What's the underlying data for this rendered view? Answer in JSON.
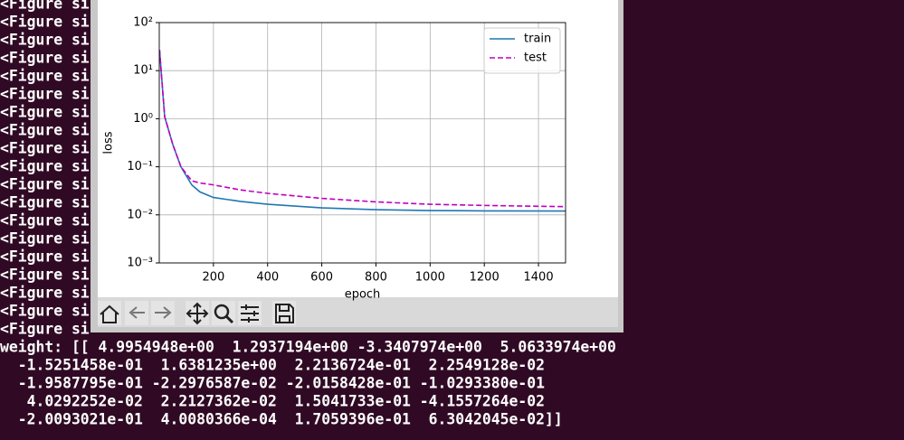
{
  "terminal": {
    "figure_lines": [
      "<Figure si",
      "<Figure si",
      "<Figure si",
      "<Figure si",
      "<Figure si",
      "<Figure si",
      "<Figure si",
      "<Figure si",
      "<Figure si",
      "<Figure si",
      "<Figure si",
      "<Figure si",
      "<Figure si",
      "<Figure si",
      "<Figure si",
      "<Figure si",
      "<Figure si",
      "<Figure si",
      "<Figure si"
    ],
    "weight_lines": [
      "weight: [[ 4.9954948e+00  1.2937194e+00 -3.3407974e+00  5.0633974e+00",
      "  -1.5251458e-01  1.6381235e+00  2.2136724e-01  2.2549128e-02",
      "  -1.9587795e-01 -2.2976587e-02 -2.0158428e-01 -1.0293380e-01",
      "   4.0292252e-02  2.2127362e-02  1.5041733e-01 -4.1557264e-02",
      "  -2.0093021e-01  4.0080366e-04  1.7059396e-01  6.3042045e-02]]"
    ]
  },
  "chart_data": {
    "type": "line",
    "x_label": "epoch",
    "y_label": "loss",
    "x": [
      1,
      20,
      50,
      80,
      120,
      150,
      200,
      300,
      400,
      600,
      800,
      1000,
      1200,
      1500
    ],
    "series": [
      {
        "name": "train",
        "color": "#1f77b4",
        "dash": false,
        "values": [
          27,
          1.1,
          0.29,
          0.1,
          0.042,
          0.03,
          0.023,
          0.019,
          0.0166,
          0.014,
          0.0128,
          0.0123,
          0.0121,
          0.012
        ]
      },
      {
        "name": "test",
        "color": "#bf00bf",
        "dash": true,
        "values": [
          27,
          1.1,
          0.29,
          0.1,
          0.051,
          0.046,
          0.042,
          0.033,
          0.028,
          0.022,
          0.0186,
          0.0166,
          0.0157,
          0.0148
        ]
      }
    ],
    "xlim": [
      0,
      1500
    ],
    "xticks": [
      200,
      400,
      600,
      800,
      1000,
      1200,
      1400
    ],
    "ylim": [
      0.001,
      100
    ],
    "log_y": true,
    "yticks": [
      {
        "value": 0.001,
        "label": "10⁻³"
      },
      {
        "value": 0.01,
        "label": "10⁻²"
      },
      {
        "value": 0.1,
        "label": "10⁻¹"
      },
      {
        "value": 1,
        "label": "10⁰"
      },
      {
        "value": 10,
        "label": "10¹"
      },
      {
        "value": 100,
        "label": "10²"
      }
    ],
    "grid": true,
    "legend": "upper right"
  }
}
